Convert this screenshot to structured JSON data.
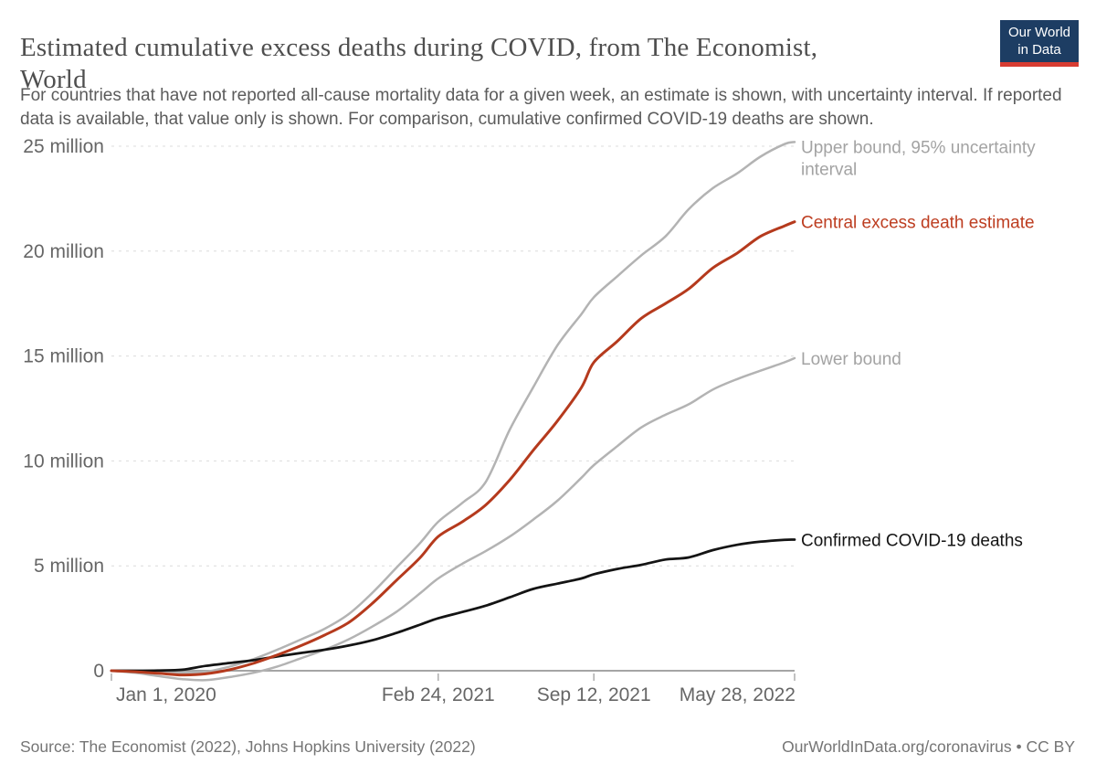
{
  "header": {
    "title": "Estimated cumulative excess deaths during COVID, from The Economist, World",
    "title_line1": "Estimated cumulative excess deaths during COVID, from The Economist,",
    "title_line2": "World",
    "subtitle": "For countries that have not reported all-cause mortality data for a given week, an estimate is shown, with uncertainty interval. If reported data is available, that value only is shown. For comparison, cumulative confirmed COVID-19 deaths are shown.",
    "logo": {
      "line1": "Our World",
      "line2": "in Data",
      "bg_color": "#1d3d63",
      "stripe_color": "#d73c32"
    }
  },
  "footer": {
    "source": "Source: The Economist (2022), Johns Hopkins University (2022)",
    "credit": "OurWorldInData.org/coronavirus • CC BY"
  },
  "chart_data": {
    "type": "line",
    "title": "Estimated cumulative excess deaths during COVID, from The Economist, World",
    "unit": "deaths (millions)",
    "grid": "dashed-horizontal",
    "legend_position": "right-of-line-ends",
    "x_axis": {
      "kind": "date",
      "range_days": [
        0,
        878
      ],
      "tick_days": [
        0,
        420,
        620,
        878
      ],
      "tick_labels": [
        "Jan 1, 2020",
        "Feb 24, 2021",
        "Sep 12, 2021",
        "May 28, 2022"
      ]
    },
    "y_axis": {
      "ylim": [
        0,
        25
      ],
      "ticks": [
        0,
        5,
        10,
        15,
        20,
        25
      ],
      "tick_labels": [
        "0",
        "5 million",
        "10 million",
        "15 million",
        "20 million",
        "25 million"
      ]
    },
    "x_days": [
      0,
      31,
      60,
      91,
      121,
      152,
      182,
      213,
      244,
      274,
      305,
      335,
      366,
      397,
      420,
      451,
      481,
      512,
      542,
      573,
      604,
      620,
      650,
      681,
      712,
      742,
      773,
      804,
      834,
      865,
      878
    ],
    "series": [
      {
        "name": "Upper bound, 95% uncertainty interval",
        "label_lines": [
          "Upper bound, 95% uncertainty",
          "interval"
        ],
        "color": "#b3b3b3",
        "label_color": "#a3a3a3",
        "width": 2.5,
        "values": [
          0,
          0,
          -0.05,
          -0.1,
          -0.05,
          0.2,
          0.55,
          1,
          1.5,
          2,
          2.7,
          3.7,
          4.9,
          6.1,
          7.1,
          8,
          9,
          11.5,
          13.5,
          15.5,
          17,
          17.8,
          18.8,
          19.8,
          20.7,
          22,
          23,
          23.7,
          24.5,
          25.1,
          25.2
        ]
      },
      {
        "name": "Lower bound",
        "label_lines": [
          "Lower bound"
        ],
        "color": "#b3b3b3",
        "label_color": "#a3a3a3",
        "width": 2.5,
        "values": [
          0,
          -0.1,
          -0.25,
          -0.4,
          -0.45,
          -0.3,
          -0.1,
          0.2,
          0.6,
          1,
          1.5,
          2.1,
          2.8,
          3.7,
          4.4,
          5.1,
          5.7,
          6.4,
          7.2,
          8.1,
          9.2,
          9.8,
          10.7,
          11.6,
          12.2,
          12.7,
          13.4,
          13.9,
          14.3,
          14.7,
          14.9
        ]
      },
      {
        "name": "Confirmed COVID-19 deaths",
        "label_lines": [
          "Confirmed COVID-19 deaths"
        ],
        "color": "#141414",
        "label_color": "#141414",
        "width": 2.75,
        "values": [
          0,
          0,
          0.01,
          0.05,
          0.23,
          0.37,
          0.5,
          0.68,
          0.85,
          1,
          1.2,
          1.45,
          1.8,
          2.2,
          2.5,
          2.8,
          3.1,
          3.5,
          3.9,
          4.15,
          4.4,
          4.6,
          4.85,
          5.05,
          5.3,
          5.4,
          5.75,
          6,
          6.15,
          6.24,
          6.25
        ]
      },
      {
        "name": "Central excess death estimate",
        "label_lines": [
          "Central excess death estimate"
        ],
        "color": "#b53a1d",
        "label_color": "#bd3d20",
        "width": 3,
        "values": [
          0,
          -0.05,
          -0.12,
          -0.2,
          -0.15,
          0.05,
          0.35,
          0.75,
          1.2,
          1.7,
          2.3,
          3.2,
          4.3,
          5.4,
          6.4,
          7.1,
          7.9,
          9.1,
          10.5,
          11.9,
          13.5,
          14.7,
          15.7,
          16.8,
          17.5,
          18.2,
          19.2,
          19.9,
          20.7,
          21.2,
          21.4
        ]
      }
    ]
  }
}
